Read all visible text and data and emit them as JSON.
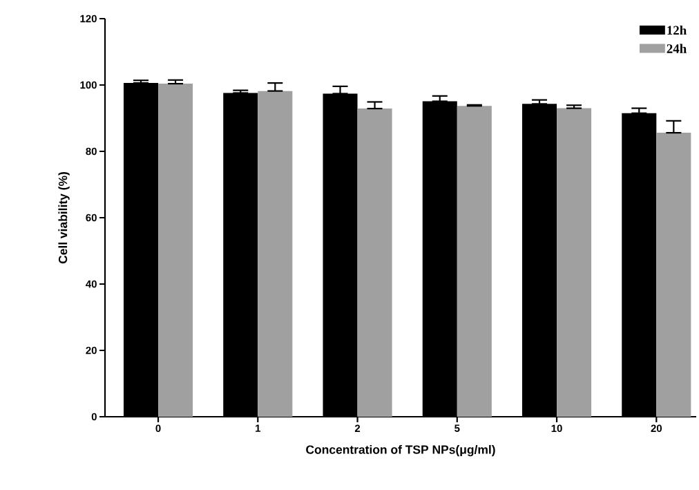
{
  "chart_data": {
    "type": "bar",
    "xlabel": "Concentration of TSP NPs(μg/ml)",
    "ylabel": "Cell viability (%)",
    "categories": [
      "0",
      "1",
      "2",
      "5",
      "10",
      "20"
    ],
    "series": [
      {
        "name": "12h",
        "color": "#000000",
        "values": [
          100.6,
          97.6,
          97.4,
          95.1,
          94.3,
          91.5
        ],
        "errors": [
          [
            100.6,
            101.4
          ],
          [
            97.6,
            98.4
          ],
          [
            97.4,
            99.6
          ],
          [
            95.1,
            96.7
          ],
          [
            94.3,
            95.5
          ],
          [
            91.5,
            93.0
          ]
        ]
      },
      {
        "name": "24h",
        "color": "#a0a0a0",
        "values": [
          100.4,
          98.2,
          92.9,
          93.7,
          93.0,
          85.6
        ],
        "errors": [
          [
            100.4,
            101.5
          ],
          [
            98.2,
            100.6
          ],
          [
            92.9,
            94.9
          ],
          [
            93.7,
            94.0
          ],
          [
            93.0,
            93.9
          ],
          [
            85.6,
            89.2
          ]
        ]
      }
    ],
    "ylim": [
      0,
      120
    ],
    "yticks": [
      0,
      20,
      40,
      60,
      80,
      100,
      120
    ],
    "legend": "top right"
  }
}
